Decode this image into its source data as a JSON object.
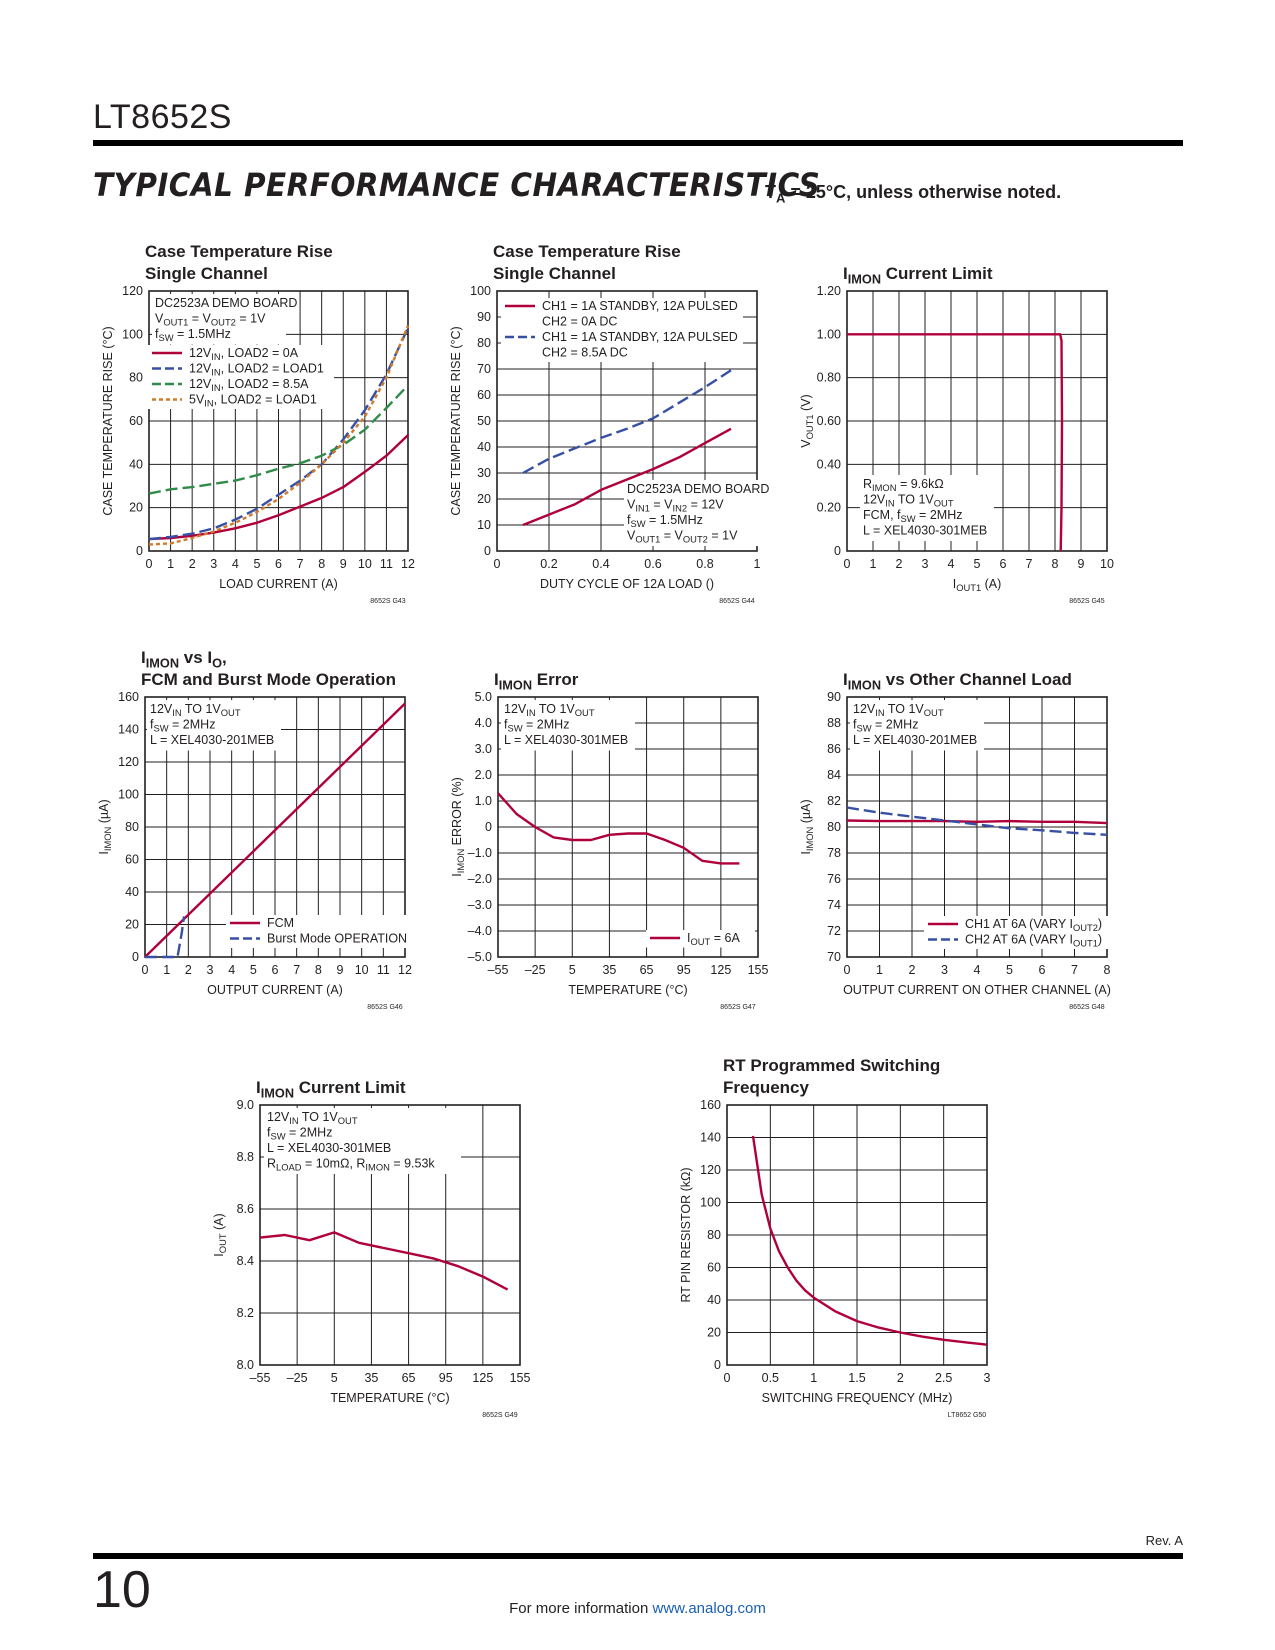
{
  "header": {
    "part_number": "LT8652S",
    "section_title": "TYPICAL PERFORMANCE CHARACTERISTICS",
    "conditions_prefix": "T",
    "conditions_sub": "A",
    "conditions_rest": " = 25°C, unless otherwise noted."
  },
  "footer": {
    "rev": "Rev. A",
    "page_number": "10",
    "info_text": "For more information ",
    "info_link": "www.analog.com"
  },
  "colors": {
    "red": "#b0003a",
    "blue": "#3750a3",
    "green": "#2e8b4a",
    "orange": "#d07a2a",
    "grid": "#231f20"
  },
  "chart_data": [
    {
      "id": "g43",
      "type": "line",
      "title_lines": [
        "Case Temperature Rise",
        "Single Channel"
      ],
      "xlabel": "LOAD CURRENT (A)",
      "ylabel": "CASE TEMPERATURE RISE (°C)",
      "xlim": [
        0,
        12
      ],
      "ylim": [
        0,
        120
      ],
      "xticks": [
        0,
        1,
        2,
        3,
        4,
        5,
        6,
        7,
        8,
        9,
        10,
        11,
        12
      ],
      "yticks": [
        0,
        20,
        40,
        60,
        80,
        100,
        120
      ],
      "note_lines": [
        "DC2523A DEMO BOARD",
        "V_OUT1 = V_OUT2 = 1V",
        "f_SW = 1.5MHz"
      ],
      "code": "8652S G43",
      "series": [
        {
          "name": "12V_IN, LOAD2 = 0A",
          "color": "red",
          "dash": "solid",
          "x": [
            0,
            1,
            2,
            3,
            4,
            5,
            6,
            7,
            8,
            9,
            10,
            11,
            12
          ],
          "y": [
            5.5,
            6,
            7,
            8.5,
            10.5,
            13,
            16.5,
            20.5,
            24.5,
            29.5,
            36.5,
            44,
            53.5
          ]
        },
        {
          "name": "12V_IN, LOAD2 = LOAD1",
          "color": "blue",
          "dash": "dash",
          "x": [
            0,
            1,
            2,
            3,
            4,
            5,
            6,
            7,
            8,
            9,
            10,
            11,
            12
          ],
          "y": [
            5.5,
            6.5,
            8,
            10.5,
            14.5,
            19.5,
            26,
            32.5,
            40,
            51.5,
            65,
            81.5,
            103
          ]
        },
        {
          "name": "12V_IN, LOAD2 = 8.5A",
          "color": "green",
          "dash": "dash",
          "x": [
            0,
            1,
            2,
            3,
            4,
            5,
            6,
            7,
            8,
            9,
            10,
            11,
            12
          ],
          "y": [
            26.5,
            28.5,
            29.5,
            31,
            32.5,
            35,
            38,
            40.5,
            44,
            49,
            56,
            66,
            76.5
          ]
        },
        {
          "name": "5V_IN, LOAD2 = LOAD1",
          "color": "orange",
          "dash": "dot",
          "x": [
            0,
            1,
            2,
            3,
            4,
            5,
            6,
            7,
            8,
            9,
            10,
            11,
            12
          ],
          "y": [
            3,
            3.5,
            6,
            9,
            13,
            18,
            24,
            31.5,
            40,
            50,
            62,
            80,
            104
          ]
        }
      ]
    },
    {
      "id": "g44",
      "type": "line",
      "title_lines": [
        "Case Temperature Rise",
        "Single Channel"
      ],
      "xlabel": "DUTY CYCLE OF 12A LOAD ()",
      "ylabel": "CASE TEMPERATURE RISE (°C)",
      "xlim": [
        0,
        1
      ],
      "ylim": [
        0,
        100
      ],
      "xticks": [
        0,
        0.2,
        0.4,
        0.6,
        0.8,
        1
      ],
      "yticks": [
        0,
        10,
        20,
        30,
        40,
        50,
        60,
        70,
        80,
        90,
        100
      ],
      "note_lines": [
        "DC2523A DEMO BOARD",
        "V_IN1 = V_IN2 = 12V",
        "f_SW = 1.5MHz",
        "V_OUT1 = V_OUT2 = 1V"
      ],
      "code": "8652S G44",
      "series": [
        {
          "name": "CH1 = 1A STANDBY, 12A PULSED",
          "name2": "CH2 = 0A DC",
          "color": "red",
          "dash": "solid",
          "x": [
            0.1,
            0.2,
            0.3,
            0.4,
            0.5,
            0.6,
            0.7,
            0.8,
            0.9
          ],
          "y": [
            10,
            14,
            18,
            23.5,
            27.5,
            31.5,
            36,
            41.5,
            47
          ]
        },
        {
          "name": "CH1 = 1A STANDBY, 12A PULSED",
          "name2": "CH2 = 8.5A DC",
          "color": "blue",
          "dash": "dash",
          "x": [
            0.1,
            0.2,
            0.3,
            0.4,
            0.5,
            0.6,
            0.7,
            0.8,
            0.9
          ],
          "y": [
            30,
            35.5,
            39.5,
            43.5,
            47,
            51,
            57,
            63,
            69.5
          ]
        }
      ]
    },
    {
      "id": "g45",
      "type": "line",
      "title_lines": [
        "I_IMON Current Limit"
      ],
      "xlabel": "I_OUT1 (A)",
      "ylabel": "V_OUT1 (V)",
      "xlim": [
        0,
        10
      ],
      "ylim": [
        0,
        1.2
      ],
      "xticks": [
        0,
        1,
        2,
        3,
        4,
        5,
        6,
        7,
        8,
        9,
        10
      ],
      "yticks": [
        0,
        0.2,
        0.4,
        0.6,
        0.8,
        1.0,
        1.2
      ],
      "ytick_labels": [
        "0",
        "0.20",
        "0.40",
        "0.60",
        "0.80",
        "1.00",
        "1.20"
      ],
      "note_lines": [
        "R_IMON = 9.6kΩ",
        "12V_IN TO 1V_OUT",
        "FCM, f_SW = 2MHz",
        "L = XEL4030-301MEB"
      ],
      "code": "8652S G45",
      "series": [
        {
          "name": "",
          "color": "red",
          "dash": "solid",
          "x": [
            0,
            8.2,
            8.25,
            8.27,
            8.25,
            8.22
          ],
          "y": [
            1.0,
            1.0,
            0.97,
            0.6,
            0.2,
            0
          ]
        }
      ]
    },
    {
      "id": "g46",
      "type": "line",
      "title_lines": [
        "I_IMON vs I_O,",
        "FCM and Burst Mode Operation"
      ],
      "xlabel": "OUTPUT CURRENT (A)",
      "ylabel": "I_IMON (µA)",
      "xlim": [
        0,
        12
      ],
      "ylim": [
        0,
        160
      ],
      "xticks": [
        0,
        1,
        2,
        3,
        4,
        5,
        6,
        7,
        8,
        9,
        10,
        11,
        12
      ],
      "yticks": [
        0,
        20,
        40,
        60,
        80,
        100,
        120,
        140,
        160
      ],
      "note_lines": [
        "12V_IN TO 1V_OUT",
        "f_SW = 2MHz",
        "L = XEL4030-201MEB"
      ],
      "code": "8652S G46",
      "series": [
        {
          "name": "FCM",
          "color": "red",
          "dash": "solid",
          "x": [
            0,
            12
          ],
          "y": [
            0,
            156
          ]
        },
        {
          "name": "Burst Mode OPERATION",
          "color": "blue",
          "dash": "dash",
          "x": [
            0,
            1.5,
            1.7,
            1.8
          ],
          "y": [
            0,
            0,
            15,
            25
          ]
        }
      ]
    },
    {
      "id": "g47",
      "type": "line",
      "title_lines": [
        "I_IMON Error"
      ],
      "xlabel": "TEMPERATURE (°C)",
      "ylabel": "I_IMON ERROR (%)",
      "xlim": [
        -55,
        155
      ],
      "ylim": [
        -5,
        5
      ],
      "xticks": [
        -55,
        -25,
        5,
        35,
        65,
        95,
        125,
        155
      ],
      "yticks": [
        -5,
        -4,
        -3,
        -2,
        -1,
        0,
        1,
        2,
        3,
        4,
        5
      ],
      "xtick_labels": [
        "–55",
        "–25",
        "5",
        "35",
        "65",
        "95",
        "125",
        "155"
      ],
      "ytick_labels": [
        "–5.0",
        "–4.0",
        "–3.0",
        "–2.0",
        "–1.0",
        "0",
        "1.0",
        "2.0",
        "3.0",
        "4.0",
        "5.0"
      ],
      "note_lines": [
        "12V_IN TO 1V_OUT",
        "f_SW = 2MHz",
        "L = XEL4030-301MEB"
      ],
      "code": "8652S G47",
      "series": [
        {
          "name": "I_OUT = 6A",
          "color": "red",
          "dash": "solid",
          "x": [
            -55,
            -40,
            -25,
            -10,
            5,
            20,
            35,
            50,
            65,
            80,
            95,
            110,
            125,
            140
          ],
          "y": [
            1.3,
            0.5,
            0,
            -0.4,
            -0.5,
            -0.5,
            -0.3,
            -0.25,
            -0.25,
            -0.5,
            -0.8,
            -1.3,
            -1.4,
            -1.4
          ]
        }
      ]
    },
    {
      "id": "g48",
      "type": "line",
      "title_lines": [
        "I_IMON vs Other Channel Load"
      ],
      "xlabel": "OUTPUT CURRENT ON OTHER CHANNEL (A)",
      "ylabel": "I_IMON (µA)",
      "xlim": [
        0,
        8
      ],
      "ylim": [
        70,
        90
      ],
      "xticks": [
        0,
        1,
        2,
        3,
        4,
        5,
        6,
        7,
        8
      ],
      "yticks": [
        70,
        72,
        74,
        76,
        78,
        80,
        82,
        84,
        86,
        88,
        90
      ],
      "note_lines": [
        "12V_IN TO 1V_OUT",
        "f_SW = 2MHz",
        "L = XEL4030-201MEB"
      ],
      "code": "8652S G48",
      "series": [
        {
          "name": "CH1 AT 6A (VARY I_OUT2)",
          "color": "red",
          "dash": "solid",
          "x": [
            0,
            1,
            2,
            3,
            4,
            5,
            6,
            7,
            8
          ],
          "y": [
            80.5,
            80.45,
            80.45,
            80.45,
            80.4,
            80.45,
            80.4,
            80.4,
            80.3
          ]
        },
        {
          "name": "CH2 AT 6A (VARY I_OUT1)",
          "color": "blue",
          "dash": "dash",
          "x": [
            0,
            1,
            2,
            3,
            4,
            5,
            6,
            7,
            8
          ],
          "y": [
            81.5,
            81.1,
            80.8,
            80.5,
            80.2,
            79.9,
            79.75,
            79.55,
            79.4
          ]
        }
      ]
    },
    {
      "id": "g49",
      "type": "line",
      "title_lines": [
        "I_IMON Current Limit"
      ],
      "xlabel": "TEMPERATURE (°C)",
      "ylabel": "I_OUT (A)",
      "xlim": [
        -55,
        155
      ],
      "ylim": [
        8.0,
        9.0
      ],
      "xticks": [
        -55,
        -25,
        5,
        35,
        65,
        95,
        125,
        155
      ],
      "yticks": [
        8.0,
        8.2,
        8.4,
        8.6,
        8.8,
        9.0
      ],
      "xtick_labels": [
        "–55",
        "–25",
        "5",
        "35",
        "65",
        "95",
        "125",
        "155"
      ],
      "ytick_labels": [
        "8.0",
        "8.2",
        "8.4",
        "8.6",
        "8.8",
        "9.0"
      ],
      "note_lines": [
        "12V_IN TO 1V_OUT",
        "f_SW = 2MHz",
        "L = XEL4030-301MEB",
        "R_LOAD = 10mΩ, R_IMON = 9.53k"
      ],
      "code": "8652S G49",
      "series": [
        {
          "name": "",
          "color": "red",
          "dash": "solid",
          "x": [
            -55,
            -35,
            -15,
            5,
            25,
            45,
            65,
            85,
            105,
            125,
            145
          ],
          "y": [
            8.49,
            8.5,
            8.48,
            8.51,
            8.47,
            8.45,
            8.43,
            8.41,
            8.38,
            8.34,
            8.29
          ]
        }
      ]
    },
    {
      "id": "g50",
      "type": "line",
      "title_lines": [
        "RT Programmed Switching",
        "Frequency"
      ],
      "xlabel": "SWITCHING FREQUENCY (MHz)",
      "ylabel": "RT PIN RESISTOR (kΩ)",
      "xlim": [
        0,
        3
      ],
      "ylim": [
        0,
        160
      ],
      "xticks": [
        0,
        0.5,
        1,
        1.5,
        2,
        2.5,
        3
      ],
      "yticks": [
        0,
        20,
        40,
        60,
        80,
        100,
        120,
        140,
        160
      ],
      "code": "LT8652 G50",
      "series": [
        {
          "name": "",
          "color": "red",
          "dash": "solid",
          "x": [
            0.3,
            0.4,
            0.5,
            0.6,
            0.7,
            0.8,
            0.9,
            1,
            1.25,
            1.5,
            1.75,
            2,
            2.25,
            2.5,
            2.75,
            3
          ],
          "y": [
            141,
            105,
            84,
            70,
            60,
            52,
            46,
            41.5,
            33,
            27,
            23,
            20,
            17.5,
            15.5,
            14,
            12.5
          ]
        }
      ]
    }
  ]
}
